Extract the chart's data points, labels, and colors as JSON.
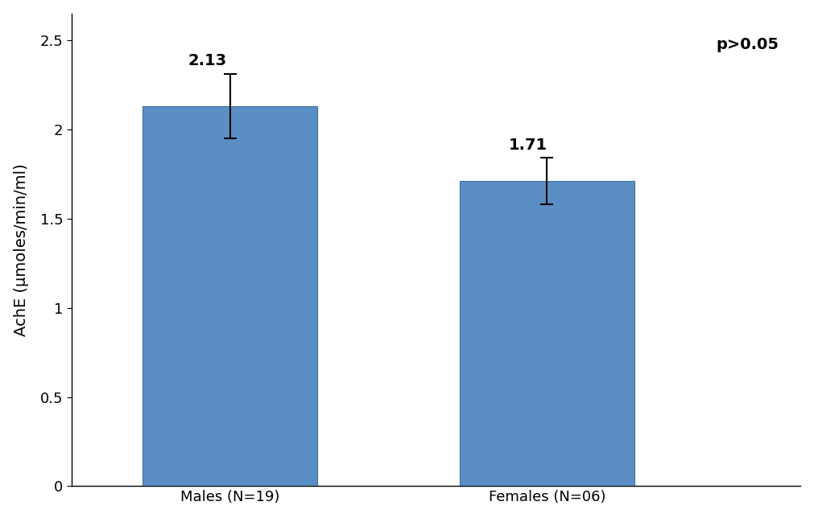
{
  "categories": [
    "Males (N=19)",
    "Females (N=06)"
  ],
  "values": [
    2.13,
    1.71
  ],
  "errors": [
    0.18,
    0.13
  ],
  "bar_color": "#5B8EC5",
  "bar_width": 0.55,
  "bar_positions": [
    1,
    2
  ],
  "xlim": [
    0.5,
    2.8
  ],
  "ylim": [
    0,
    2.65
  ],
  "yticks": [
    0,
    0.5,
    1.0,
    1.5,
    2.0,
    2.5
  ],
  "ytick_labels": [
    "0",
    "0.5",
    "1",
    "1.5",
    "2",
    "2.5"
  ],
  "ylabel": "AchE (μmoles/min/ml)",
  "ylabel_fontsize": 14,
  "tick_label_fontsize": 13,
  "value_label_fontsize": 14,
  "annotation_text": "p>0.05",
  "background_color": "#ffffff",
  "bar_edge_color": "#3A6FA0",
  "error_cap_size": 6,
  "error_color": "black",
  "error_linewidth": 1.5
}
